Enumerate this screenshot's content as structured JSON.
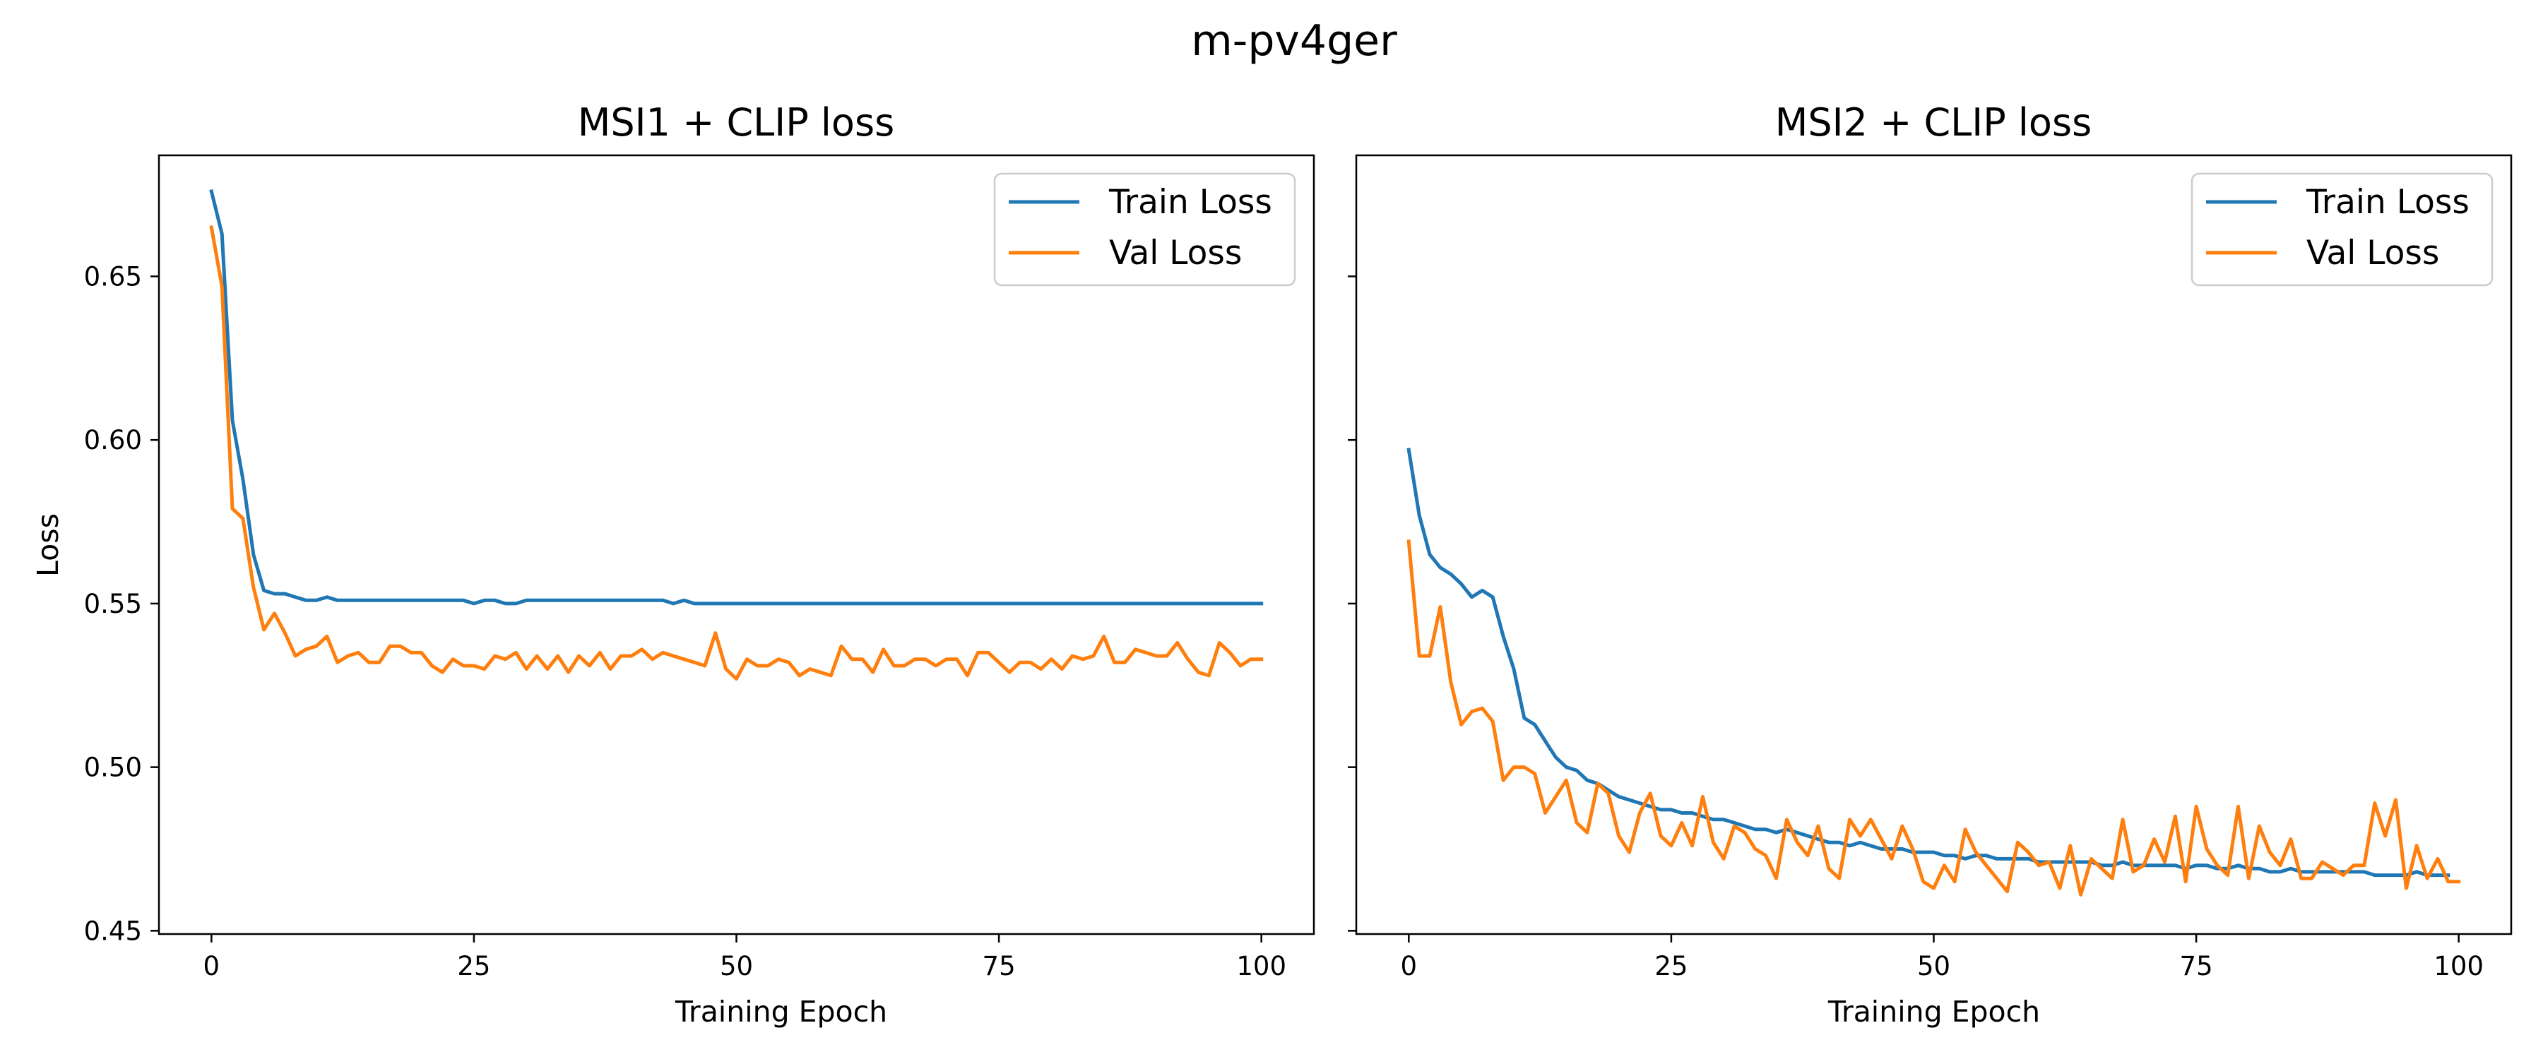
{
  "suptitle": "m-pv4ger",
  "colors": {
    "train": "#1f77b4",
    "val": "#ff7f0e"
  },
  "chart_data": [
    {
      "type": "line",
      "title": "MSI1 + CLIP loss",
      "xlabel": "Training Epoch",
      "ylabel": "Loss",
      "xlim": [
        -5,
        105
      ],
      "ylim": [
        0.449,
        0.687
      ],
      "xticks": [
        0,
        25,
        50,
        75,
        100
      ],
      "yticks": [
        0.45,
        0.5,
        0.55,
        0.6,
        0.65
      ],
      "ytick_labels": [
        "0.45",
        "0.50",
        "0.55",
        "0.60",
        "0.65"
      ],
      "legend_placement": "top-right",
      "grid": false,
      "series": [
        {
          "name": "Train Loss",
          "x": [
            0,
            1,
            2,
            3,
            4,
            5,
            6,
            7,
            8,
            9,
            10,
            11,
            12,
            13,
            14,
            15,
            16,
            17,
            18,
            19,
            20,
            21,
            22,
            23,
            24,
            25,
            26,
            27,
            28,
            29,
            30,
            31,
            32,
            33,
            34,
            35,
            36,
            37,
            38,
            39,
            40,
            41,
            42,
            43,
            44,
            45,
            46,
            47,
            48,
            49,
            50,
            51,
            52,
            53,
            54,
            55,
            56,
            57,
            58,
            59,
            60,
            61,
            62,
            63,
            64,
            65,
            66,
            67,
            68,
            69,
            70,
            71,
            72,
            73,
            74,
            75,
            76,
            77,
            78,
            79,
            80,
            81,
            82,
            83,
            84,
            85,
            86,
            87,
            88,
            89,
            90,
            91,
            92,
            93,
            94,
            95,
            96,
            97,
            98,
            99,
            100
          ],
          "y": [
            0.676,
            0.663,
            0.606,
            0.588,
            0.565,
            0.554,
            0.553,
            0.553,
            0.552,
            0.551,
            0.551,
            0.552,
            0.551,
            0.551,
            0.551,
            0.551,
            0.551,
            0.551,
            0.551,
            0.551,
            0.551,
            0.551,
            0.551,
            0.551,
            0.551,
            0.55,
            0.551,
            0.551,
            0.55,
            0.55,
            0.551,
            0.551,
            0.551,
            0.551,
            0.551,
            0.551,
            0.551,
            0.551,
            0.551,
            0.551,
            0.551,
            0.551,
            0.551,
            0.551,
            0.55,
            0.551,
            0.55,
            0.55,
            0.55,
            0.55,
            0.55,
            0.55,
            0.55,
            0.55,
            0.55,
            0.55,
            0.55,
            0.55,
            0.55,
            0.55,
            0.55,
            0.55,
            0.55,
            0.55,
            0.55,
            0.55,
            0.55,
            0.55,
            0.55,
            0.55,
            0.55,
            0.55,
            0.55,
            0.55,
            0.55,
            0.55,
            0.55,
            0.55,
            0.55,
            0.55,
            0.55,
            0.55,
            0.55,
            0.55,
            0.55,
            0.55,
            0.55,
            0.55,
            0.55,
            0.55,
            0.55,
            0.55,
            0.55,
            0.55,
            0.55,
            0.55,
            0.55,
            0.55,
            0.55,
            0.55,
            0.55
          ]
        },
        {
          "name": "Val Loss",
          "x": [
            0,
            1,
            2,
            3,
            4,
            5,
            6,
            7,
            8,
            9,
            10,
            11,
            12,
            13,
            14,
            15,
            16,
            17,
            18,
            19,
            20,
            21,
            22,
            23,
            24,
            25,
            26,
            27,
            28,
            29,
            30,
            31,
            32,
            33,
            34,
            35,
            36,
            37,
            38,
            39,
            40,
            41,
            42,
            43,
            44,
            45,
            46,
            47,
            48,
            49,
            50,
            51,
            52,
            53,
            54,
            55,
            56,
            57,
            58,
            59,
            60,
            61,
            62,
            63,
            64,
            65,
            66,
            67,
            68,
            69,
            70,
            71,
            72,
            73,
            74,
            75,
            76,
            77,
            78,
            79,
            80,
            81,
            82,
            83,
            84,
            85,
            86,
            87,
            88,
            89,
            90,
            91,
            92,
            93,
            94,
            95,
            96,
            97,
            98,
            99,
            100
          ],
          "y": [
            0.665,
            0.647,
            0.579,
            0.576,
            0.555,
            0.542,
            0.547,
            0.541,
            0.534,
            0.536,
            0.537,
            0.54,
            0.532,
            0.534,
            0.535,
            0.532,
            0.532,
            0.537,
            0.537,
            0.535,
            0.535,
            0.531,
            0.529,
            0.533,
            0.531,
            0.531,
            0.53,
            0.534,
            0.533,
            0.535,
            0.53,
            0.534,
            0.53,
            0.534,
            0.529,
            0.534,
            0.531,
            0.535,
            0.53,
            0.534,
            0.534,
            0.536,
            0.533,
            0.535,
            0.534,
            0.533,
            0.532,
            0.531,
            0.541,
            0.53,
            0.527,
            0.533,
            0.531,
            0.531,
            0.533,
            0.532,
            0.528,
            0.53,
            0.529,
            0.528,
            0.537,
            0.533,
            0.533,
            0.529,
            0.536,
            0.531,
            0.531,
            0.533,
            0.533,
            0.531,
            0.533,
            0.533,
            0.528,
            0.535,
            0.535,
            0.532,
            0.529,
            0.532,
            0.532,
            0.53,
            0.533,
            0.53,
            0.534,
            0.533,
            0.534,
            0.54,
            0.532,
            0.532,
            0.536,
            0.535,
            0.534,
            0.534,
            0.538,
            0.533,
            0.529,
            0.528,
            0.538,
            0.535,
            0.531,
            0.533,
            0.533
          ]
        }
      ]
    },
    {
      "type": "line",
      "title": "MSI2 + CLIP loss",
      "xlabel": "Training Epoch",
      "xlim": [
        -5,
        105
      ],
      "ylim": [
        0.449,
        0.687
      ],
      "xticks": [
        0,
        25,
        50,
        75,
        100
      ],
      "yticks": [
        0.45,
        0.5,
        0.55,
        0.6,
        0.65
      ],
      "legend_placement": "top-right",
      "grid": false,
      "series": [
        {
          "name": "Train Loss",
          "x": [
            0,
            1,
            2,
            3,
            4,
            5,
            6,
            7,
            8,
            9,
            10,
            11,
            12,
            13,
            14,
            15,
            16,
            17,
            18,
            19,
            20,
            21,
            22,
            23,
            24,
            25,
            26,
            27,
            28,
            29,
            30,
            31,
            32,
            33,
            34,
            35,
            36,
            37,
            38,
            39,
            40,
            41,
            42,
            43,
            44,
            45,
            46,
            47,
            48,
            49,
            50,
            51,
            52,
            53,
            54,
            55,
            56,
            57,
            58,
            59,
            60,
            61,
            62,
            63,
            64,
            65,
            66,
            67,
            68,
            69,
            70,
            71,
            72,
            73,
            74,
            75,
            76,
            77,
            78,
            79,
            80,
            81,
            82,
            83,
            84,
            85,
            86,
            87,
            88,
            89,
            90,
            91,
            92,
            93,
            94,
            95,
            96,
            97,
            98,
            99
          ],
          "y": [
            0.597,
            0.577,
            0.565,
            0.561,
            0.559,
            0.556,
            0.552,
            0.554,
            0.552,
            0.54,
            0.53,
            0.515,
            0.513,
            0.508,
            0.503,
            0.5,
            0.499,
            0.496,
            0.495,
            0.493,
            0.491,
            0.49,
            0.489,
            0.488,
            0.487,
            0.487,
            0.486,
            0.486,
            0.485,
            0.484,
            0.484,
            0.483,
            0.482,
            0.481,
            0.481,
            0.48,
            0.481,
            0.48,
            0.479,
            0.478,
            0.477,
            0.477,
            0.476,
            0.477,
            0.476,
            0.475,
            0.475,
            0.475,
            0.474,
            0.474,
            0.474,
            0.473,
            0.473,
            0.472,
            0.473,
            0.473,
            0.472,
            0.472,
            0.472,
            0.472,
            0.471,
            0.471,
            0.471,
            0.471,
            0.471,
            0.471,
            0.47,
            0.47,
            0.471,
            0.47,
            0.47,
            0.47,
            0.47,
            0.47,
            0.469,
            0.47,
            0.47,
            0.469,
            0.469,
            0.47,
            0.469,
            0.469,
            0.468,
            0.468,
            0.469,
            0.468,
            0.468,
            0.468,
            0.468,
            0.468,
            0.468,
            0.468,
            0.467,
            0.467,
            0.467,
            0.467,
            0.468,
            0.467,
            0.467,
            0.467
          ]
        },
        {
          "name": "Val Loss",
          "x": [
            0,
            1,
            2,
            3,
            4,
            5,
            6,
            7,
            8,
            9,
            10,
            11,
            12,
            13,
            14,
            15,
            16,
            17,
            18,
            19,
            20,
            21,
            22,
            23,
            24,
            25,
            26,
            27,
            28,
            29,
            30,
            31,
            32,
            33,
            34,
            35,
            36,
            37,
            38,
            39,
            40,
            41,
            42,
            43,
            44,
            45,
            46,
            47,
            48,
            49,
            50,
            51,
            52,
            53,
            54,
            55,
            56,
            57,
            58,
            59,
            60,
            61,
            62,
            63,
            64,
            65,
            66,
            67,
            68,
            69,
            70,
            71,
            72,
            73,
            74,
            75,
            76,
            77,
            78,
            79,
            80,
            81,
            82,
            83,
            84,
            85,
            86,
            87,
            88,
            89,
            90,
            91,
            92,
            93,
            94,
            95,
            96,
            97,
            98,
            99,
            100
          ],
          "y": [
            0.569,
            0.534,
            0.534,
            0.549,
            0.526,
            0.513,
            0.517,
            0.518,
            0.514,
            0.496,
            0.5,
            0.5,
            0.498,
            0.486,
            0.491,
            0.496,
            0.483,
            0.48,
            0.495,
            0.492,
            0.479,
            0.474,
            0.486,
            0.492,
            0.479,
            0.476,
            0.483,
            0.476,
            0.491,
            0.477,
            0.472,
            0.482,
            0.48,
            0.475,
            0.473,
            0.466,
            0.484,
            0.477,
            0.473,
            0.482,
            0.469,
            0.466,
            0.484,
            0.479,
            0.484,
            0.478,
            0.472,
            0.482,
            0.475,
            0.465,
            0.463,
            0.47,
            0.465,
            0.481,
            0.474,
            0.47,
            0.466,
            0.462,
            0.477,
            0.474,
            0.47,
            0.471,
            0.463,
            0.476,
            0.461,
            0.472,
            0.469,
            0.466,
            0.484,
            0.468,
            0.47,
            0.478,
            0.471,
            0.485,
            0.465,
            0.488,
            0.475,
            0.47,
            0.467,
            0.488,
            0.466,
            0.482,
            0.474,
            0.47,
            0.478,
            0.466,
            0.466,
            0.471,
            0.469,
            0.467,
            0.47,
            0.47,
            0.489,
            0.479,
            0.49,
            0.463,
            0.476,
            0.466,
            0.472,
            0.465,
            0.465
          ]
        }
      ]
    }
  ]
}
